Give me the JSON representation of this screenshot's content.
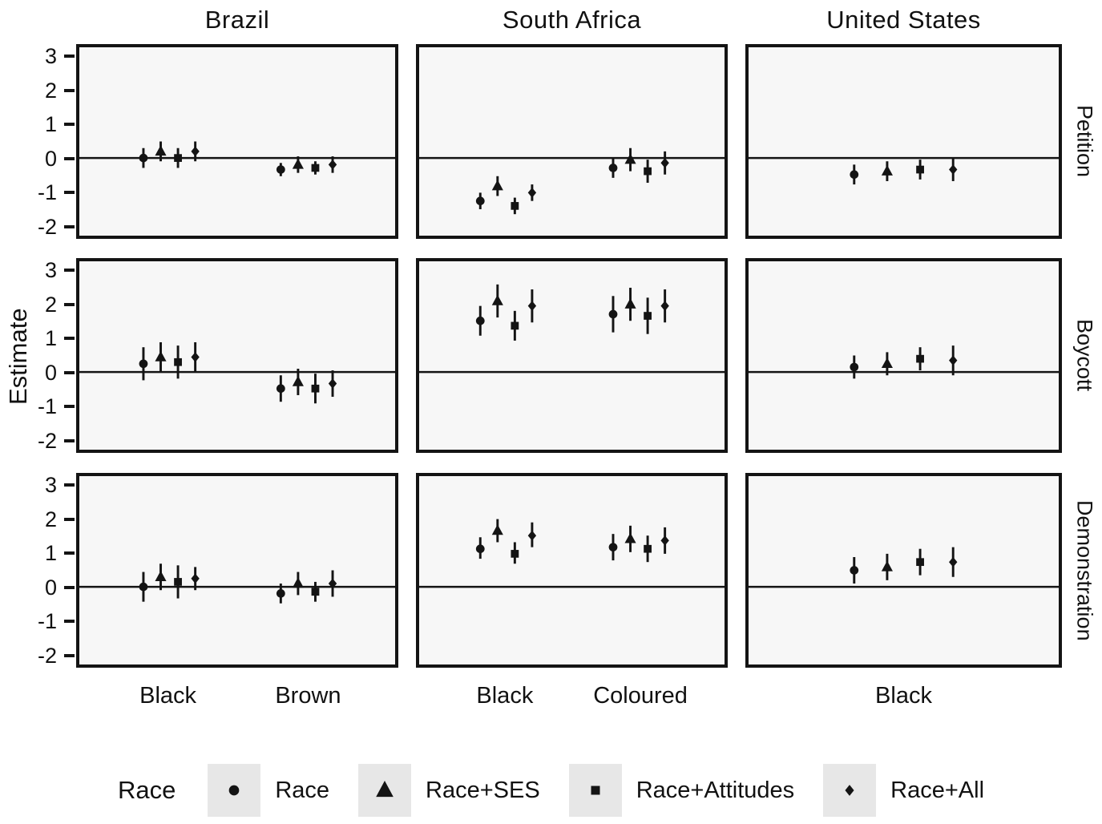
{
  "chart_data": {
    "type": "scatter",
    "title": "",
    "ylabel": "Estimate",
    "ylim": [
      -2.35,
      3.35
    ],
    "yticks": [
      3,
      2,
      1,
      0,
      -1,
      -2
    ],
    "grid": "off",
    "legend_position": "bottom",
    "columns": [
      "Brazil",
      "South Africa",
      "United States"
    ],
    "rows": [
      "Petition",
      "Boycott",
      "Demonstration"
    ],
    "legend_title": "Race",
    "models": [
      "Race",
      "Race+SES",
      "Race+Attitudes",
      "Race+All"
    ],
    "marker_shapes": [
      "circle",
      "triangle",
      "square",
      "diamond"
    ],
    "point_color": "#141414",
    "point_format": [
      "est",
      "lo",
      "hi"
    ],
    "x_categories": [
      [
        "Black",
        "Brown"
      ],
      [
        "Black",
        "Coloured"
      ],
      [
        "Black"
      ]
    ],
    "panels": [
      {
        "country": "Brazil",
        "outcome": "Petition",
        "groups": [
          {
            "label": "Black",
            "points": [
              [
                0.0,
                -0.3,
                0.3
              ],
              [
                0.2,
                -0.1,
                0.5
              ],
              [
                0.0,
                -0.3,
                0.3
              ],
              [
                0.2,
                -0.1,
                0.5
              ]
            ]
          },
          {
            "label": "Brown",
            "points": [
              [
                -0.35,
                -0.55,
                -0.15
              ],
              [
                -0.2,
                -0.45,
                0.05
              ],
              [
                -0.3,
                -0.5,
                -0.1
              ],
              [
                -0.2,
                -0.45,
                0.05
              ]
            ]
          }
        ]
      },
      {
        "country": "South Africa",
        "outcome": "Petition",
        "groups": [
          {
            "label": "Black",
            "points": [
              [
                -1.3,
                -1.55,
                -1.05
              ],
              [
                -0.85,
                -1.15,
                -0.55
              ],
              [
                -1.45,
                -1.7,
                -1.2
              ],
              [
                -1.05,
                -1.3,
                -0.8
              ]
            ]
          },
          {
            "label": "Coloured",
            "points": [
              [
                -0.3,
                -0.6,
                0.0
              ],
              [
                -0.05,
                -0.4,
                0.3
              ],
              [
                -0.4,
                -0.75,
                -0.05
              ],
              [
                -0.15,
                -0.5,
                0.2
              ]
            ]
          }
        ]
      },
      {
        "country": "United States",
        "outcome": "Petition",
        "groups": [
          {
            "label": "Black",
            "points": [
              [
                -0.5,
                -0.8,
                -0.2
              ],
              [
                -0.4,
                -0.7,
                -0.1
              ],
              [
                -0.35,
                -0.65,
                -0.05
              ],
              [
                -0.35,
                -0.7,
                0.0
              ]
            ]
          }
        ]
      },
      {
        "country": "Brazil",
        "outcome": "Boycott",
        "groups": [
          {
            "label": "Black",
            "points": [
              [
                0.25,
                -0.25,
                0.75
              ],
              [
                0.45,
                0.0,
                0.9
              ],
              [
                0.3,
                -0.2,
                0.8
              ],
              [
                0.45,
                0.0,
                0.9
              ]
            ]
          },
          {
            "label": "Brown",
            "points": [
              [
                -0.5,
                -0.9,
                -0.1
              ],
              [
                -0.3,
                -0.7,
                0.1
              ],
              [
                -0.5,
                -0.95,
                -0.05
              ],
              [
                -0.35,
                -0.75,
                0.05
              ]
            ]
          }
        ]
      },
      {
        "country": "South Africa",
        "outcome": "Boycott",
        "groups": [
          {
            "label": "Black",
            "points": [
              [
                1.55,
                1.1,
                2.0
              ],
              [
                2.15,
                1.65,
                2.65
              ],
              [
                1.4,
                0.95,
                1.85
              ],
              [
                2.0,
                1.5,
                2.5
              ]
            ]
          },
          {
            "label": "Coloured",
            "points": [
              [
                1.75,
                1.2,
                2.3
              ],
              [
                2.05,
                1.55,
                2.55
              ],
              [
                1.7,
                1.15,
                2.25
              ],
              [
                2.0,
                1.5,
                2.5
              ]
            ]
          }
        ]
      },
      {
        "country": "United States",
        "outcome": "Boycott",
        "groups": [
          {
            "label": "Black",
            "points": [
              [
                0.15,
                -0.2,
                0.5
              ],
              [
                0.25,
                -0.1,
                0.6
              ],
              [
                0.4,
                0.05,
                0.75
              ],
              [
                0.35,
                -0.1,
                0.8
              ]
            ]
          }
        ]
      },
      {
        "country": "Brazil",
        "outcome": "Demonstration",
        "groups": [
          {
            "label": "Black",
            "points": [
              [
                0.0,
                -0.45,
                0.45
              ],
              [
                0.3,
                -0.1,
                0.7
              ],
              [
                0.15,
                -0.35,
                0.65
              ],
              [
                0.25,
                -0.1,
                0.6
              ]
            ]
          },
          {
            "label": "Brown",
            "points": [
              [
                -0.2,
                -0.5,
                0.1
              ],
              [
                0.1,
                -0.25,
                0.45
              ],
              [
                -0.15,
                -0.45,
                0.15
              ],
              [
                0.1,
                -0.3,
                0.5
              ]
            ]
          }
        ]
      },
      {
        "country": "South Africa",
        "outcome": "Demonstration",
        "groups": [
          {
            "label": "Black",
            "points": [
              [
                1.15,
                0.85,
                1.5
              ],
              [
                1.7,
                1.35,
                2.05
              ],
              [
                1.0,
                0.7,
                1.35
              ],
              [
                1.55,
                1.2,
                1.95
              ]
            ]
          },
          {
            "label": "Coloured",
            "points": [
              [
                1.2,
                0.8,
                1.6
              ],
              [
                1.45,
                1.05,
                1.85
              ],
              [
                1.15,
                0.75,
                1.55
              ],
              [
                1.4,
                1.0,
                1.8
              ]
            ]
          }
        ]
      },
      {
        "country": "United States",
        "outcome": "Demonstration",
        "groups": [
          {
            "label": "Black",
            "points": [
              [
                0.5,
                0.1,
                0.9
              ],
              [
                0.6,
                0.2,
                1.0
              ],
              [
                0.75,
                0.35,
                1.15
              ],
              [
                0.75,
                0.3,
                1.2
              ]
            ]
          }
        ]
      }
    ]
  }
}
